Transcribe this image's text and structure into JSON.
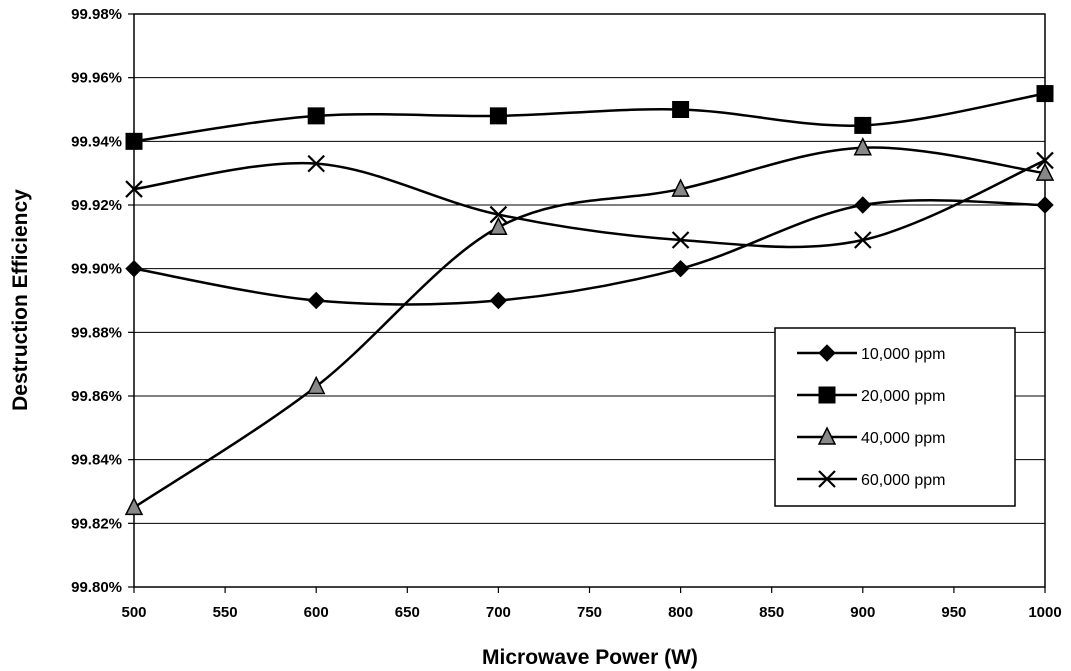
{
  "chart_data": {
    "type": "line",
    "title": "",
    "xlabel": "Microwave Power (W)",
    "ylabel": "Destruction Efficiency",
    "xlim": [
      500,
      1000
    ],
    "ylim": [
      99.8,
      99.98
    ],
    "x_ticks": [
      "500",
      "550",
      "600",
      "650",
      "700",
      "750",
      "800",
      "850",
      "900",
      "950",
      "1000"
    ],
    "x_tick_values": [
      500,
      550,
      600,
      650,
      700,
      750,
      800,
      850,
      900,
      950,
      1000
    ],
    "y_ticks": [
      "99.80%",
      "99.82%",
      "99.84%",
      "99.86%",
      "99.88%",
      "99.90%",
      "99.92%",
      "99.94%",
      "99.96%",
      "99.98%"
    ],
    "y_tick_values": [
      99.8,
      99.82,
      99.84,
      99.86,
      99.88,
      99.9,
      99.92,
      99.94,
      99.96,
      99.98
    ],
    "grid": "horizontal",
    "legend_position": "right",
    "line_color": "#000000",
    "x": [
      500,
      600,
      700,
      800,
      900,
      1000
    ],
    "series": [
      {
        "name": "10,000 ppm",
        "marker": "diamond",
        "values": [
          99.9,
          99.89,
          99.89,
          99.9,
          99.92,
          99.92
        ]
      },
      {
        "name": "20,000 ppm",
        "marker": "square",
        "values": [
          99.94,
          99.948,
          99.948,
          99.95,
          99.945,
          99.955
        ]
      },
      {
        "name": "40,000 ppm",
        "marker": "triangle",
        "values": [
          99.825,
          99.863,
          99.913,
          99.925,
          99.938,
          99.93
        ]
      },
      {
        "name": "60,000 ppm",
        "marker": "x",
        "values": [
          99.925,
          99.933,
          99.917,
          99.909,
          99.909,
          99.934
        ]
      }
    ]
  }
}
